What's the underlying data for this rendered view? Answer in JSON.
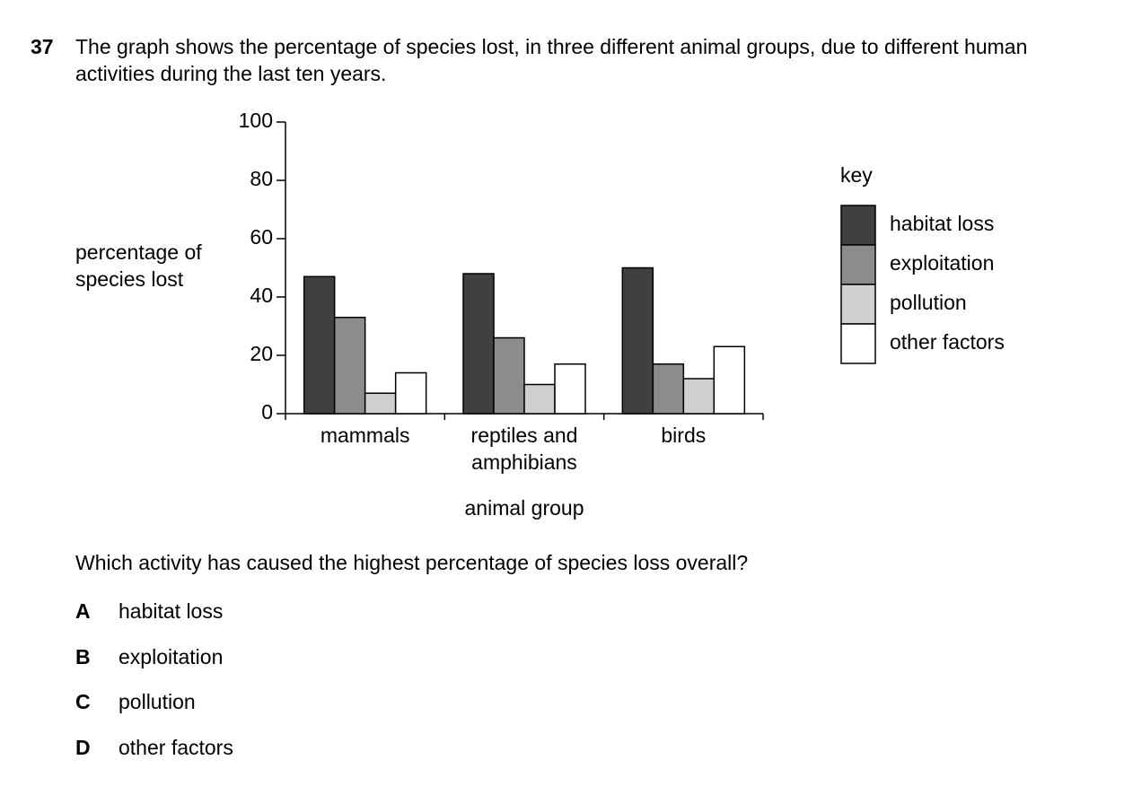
{
  "question": {
    "number": "37",
    "text": "The graph shows the percentage of species lost, in three different animal groups, due to different human activities during the last ten years."
  },
  "chart_data": {
    "type": "bar",
    "ylabel": "percentage of species lost",
    "xlabel": "animal group",
    "legend_title": "key",
    "categories": [
      "mammals",
      "reptiles and amphibians",
      "birds"
    ],
    "series": [
      {
        "name": "habitat loss",
        "color": "#404040",
        "values": [
          47,
          48,
          50
        ]
      },
      {
        "name": "exploitation",
        "color": "#8c8c8c",
        "values": [
          33,
          26,
          17
        ]
      },
      {
        "name": "pollution",
        "color": "#d0d0d0",
        "values": [
          7,
          10,
          12
        ]
      },
      {
        "name": "other factors",
        "color": "#ffffff",
        "values": [
          14,
          17,
          23
        ]
      }
    ],
    "ylim": [
      0,
      100
    ],
    "yticks": [
      0,
      20,
      40,
      60,
      80,
      100
    ],
    "grid": false
  },
  "prompt": "Which activity has caused the highest percentage of species loss overall?",
  "options": [
    {
      "letter": "A",
      "text": "habitat loss"
    },
    {
      "letter": "B",
      "text": "exploitation"
    },
    {
      "letter": "C",
      "text": "pollution"
    },
    {
      "letter": "D",
      "text": "other factors"
    }
  ]
}
